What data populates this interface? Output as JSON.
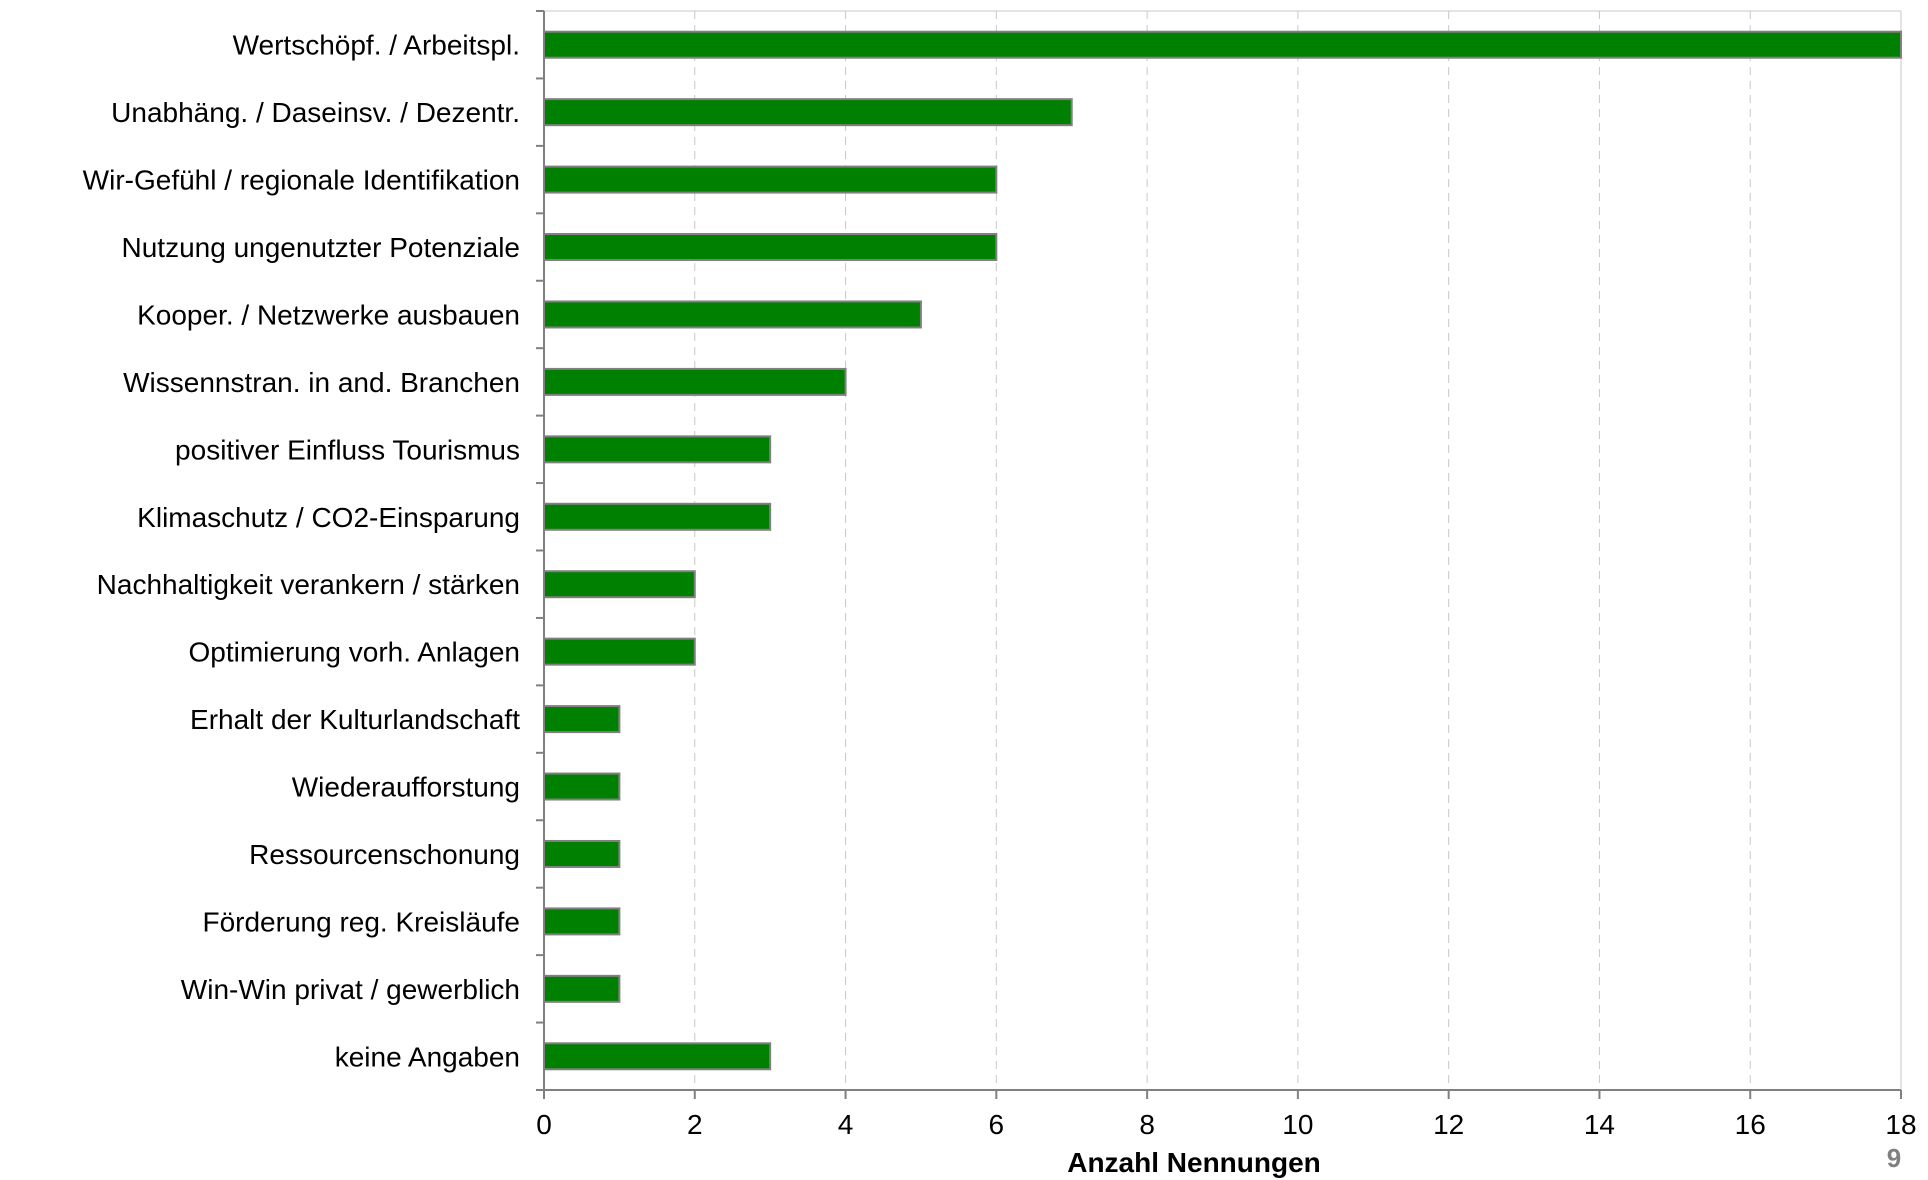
{
  "page_number": "9",
  "colors": {
    "bar_fill": "#008000",
    "bar_stroke": "#808080",
    "grid": "#c8c8c8",
    "axis": "#808080",
    "page_number": "#808080"
  },
  "chart_data": {
    "type": "bar",
    "orientation": "horizontal",
    "title": "",
    "xlabel": "Anzahl Nennungen",
    "ylabel": "",
    "xlim": [
      0,
      18
    ],
    "x_ticks": [
      0,
      2,
      4,
      6,
      8,
      10,
      12,
      14,
      16,
      18
    ],
    "grid": "vertical dashed",
    "legend": "none",
    "categories": [
      "Wertschöpf. / Arbeitspl.",
      "Unabhäng. / Daseinsv. / Dezentr.",
      "Wir-Gefühl / regionale Identifikation",
      "Nutzung ungenutzter Potenziale",
      "Kooper. / Netzwerke ausbauen",
      "Wissennstran. in and. Branchen",
      "positiver Einfluss Tourismus",
      "Klimaschutz / CO2-Einsparung",
      "Nachhaltigkeit verankern / stärken",
      "Optimierung vorh. Anlagen",
      "Erhalt der Kulturlandschaft",
      "Wiederaufforstung",
      "Ressourcenschonung",
      "Förderung reg. Kreisläufe",
      "Win-Win privat / gewerblich",
      "keine Angaben"
    ],
    "values": [
      18,
      7,
      6,
      6,
      5,
      4,
      3,
      3,
      2,
      2,
      1,
      1,
      1,
      1,
      1,
      3
    ]
  }
}
